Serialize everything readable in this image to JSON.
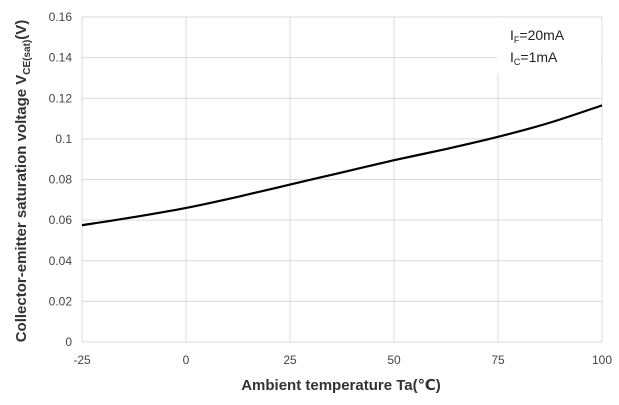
{
  "chart_data": {
    "type": "line",
    "xlabel": "Ambient temperature Ta(℃)",
    "ylabel": {
      "main": "Collector-emitter saturation voltage V",
      "sub": "CE(sat)",
      "unit": "(V)"
    },
    "xlim": [
      -25,
      100
    ],
    "ylim": [
      0,
      0.16
    ],
    "x_ticks": [
      -25,
      0,
      25,
      50,
      75,
      100
    ],
    "x_tick_labels": [
      "-25",
      "0",
      "25",
      "50",
      "75",
      "100"
    ],
    "y_ticks": [
      0,
      0.02,
      0.04,
      0.06,
      0.08,
      0.1,
      0.12,
      0.14,
      0.16
    ],
    "y_tick_labels": [
      "0",
      "0.02",
      "0.04",
      "0.06",
      "0.08",
      "0.1",
      "0.12",
      "0.14",
      "0.16"
    ],
    "grid": true,
    "conditions": [
      {
        "main": "I",
        "sub": "F",
        "value": "=20mA"
      },
      {
        "main": "I",
        "sub": "C",
        "value": "=1mA"
      }
    ],
    "series": [
      {
        "color": "#000000",
        "x": [
          -25,
          -12.5,
          0,
          12.5,
          25,
          37.5,
          50,
          62.5,
          75,
          87.5,
          100
        ],
        "y": [
          0.0575,
          0.0615,
          0.066,
          0.0715,
          0.0775,
          0.0835,
          0.0895,
          0.095,
          0.101,
          0.108,
          0.1165
        ]
      }
    ]
  }
}
